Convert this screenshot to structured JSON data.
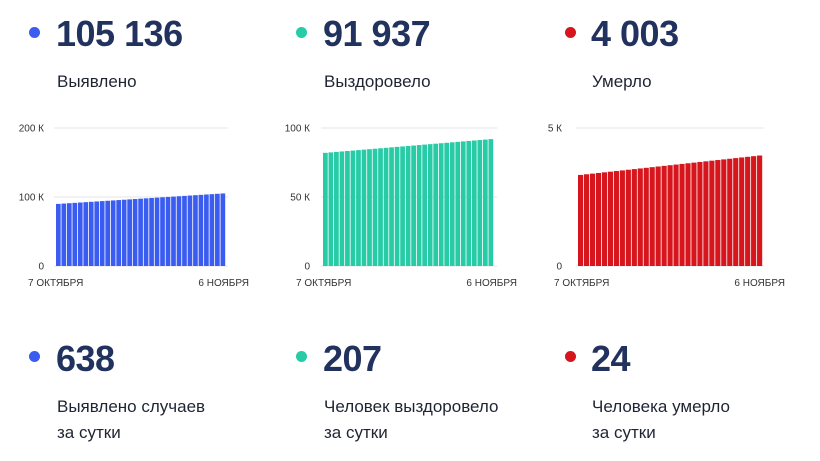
{
  "colors": {
    "blue": "#3a5cf0",
    "green": "#27cba6",
    "red": "#d6161c",
    "dark": "#22325e"
  },
  "totals": [
    {
      "value": "105 136",
      "label": "Выявлено",
      "color": "#3a5cf0"
    },
    {
      "value": "91 937",
      "label": "Выздоровело",
      "color": "#27cba6"
    },
    {
      "value": "4 003",
      "label": "Умерло",
      "color": "#d6161c"
    }
  ],
  "daily": [
    {
      "value": "638",
      "line1": "Выявлено случаев",
      "line2": "за сутки",
      "color": "#3a5cf0"
    },
    {
      "value": "207",
      "line1": "Человек выздоровело",
      "line2": "за сутки",
      "color": "#27cba6"
    },
    {
      "value": "24",
      "line1": "Человека умерло",
      "line2": "за сутки",
      "color": "#d6161c"
    }
  ],
  "chart_data": [
    {
      "type": "bar",
      "x_start_label": "7 ОКТЯБРЯ",
      "x_end_label": "6 НОЯБРЯ",
      "ytick_labels": [
        "200 К",
        "100 К",
        "0"
      ],
      "ytick_values": [
        200000,
        100000,
        0
      ],
      "ylim": [
        0,
        200000
      ],
      "start_value": 90000,
      "end_value": 105136,
      "bar_count": 31,
      "color": "#3a5cf0",
      "grid": true
    },
    {
      "type": "bar",
      "x_start_label": "7 ОКТЯБРЯ",
      "x_end_label": "6 НОЯБРЯ",
      "ytick_labels": [
        "100 К",
        "50 К",
        "0"
      ],
      "ytick_values": [
        100000,
        50000,
        0
      ],
      "ylim": [
        0,
        100000
      ],
      "start_value": 82000,
      "end_value": 91937,
      "bar_count": 31,
      "color": "#27cba6",
      "grid": true
    },
    {
      "type": "bar",
      "x_start_label": "7 ОКТЯБРЯ",
      "x_end_label": "6 НОЯБРЯ",
      "ytick_labels": [
        "5 К",
        "0"
      ],
      "ytick_values": [
        5000,
        0
      ],
      "ylim": [
        0,
        5000
      ],
      "start_value": 3300,
      "end_value": 4003,
      "bar_count": 31,
      "color": "#d6161c",
      "grid": true
    }
  ]
}
